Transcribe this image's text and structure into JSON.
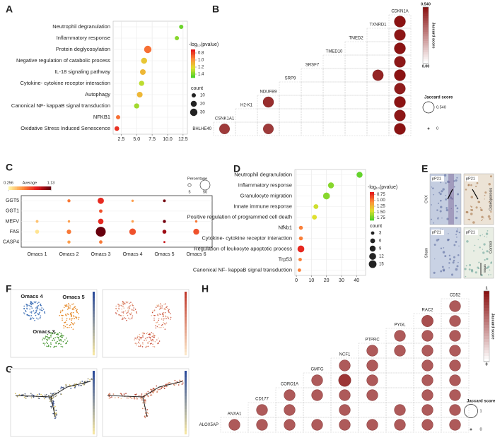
{
  "panel_labels": [
    "A",
    "B",
    "C",
    "D",
    "E",
    "F",
    "G",
    "H"
  ],
  "chart_data": [
    {
      "type": "dot",
      "categories": [
        "Neutrophil degranulation",
        "Inflammatory response",
        "Protein deglycosylation",
        "Negative regulation of catabolic process",
        "IL-18 signaling pathway",
        "Cytokine- cytokine receptor interaction",
        "Autophagy",
        "Canonical NF- kappaB signal transduction",
        "NFKB1",
        "Oxidative Stress Induced Senescence"
      ],
      "values": [
        12.2,
        11.5,
        6.8,
        6.2,
        6.0,
        5.8,
        5.5,
        5.0,
        2.0,
        1.8
      ],
      "sizes": [
        10,
        10,
        30,
        20,
        18,
        15,
        18,
        15,
        10,
        12
      ],
      "color_values": [
        1.45,
        1.4,
        0.9,
        1.15,
        1.1,
        1.3,
        1.1,
        1.35,
        0.9,
        0.75
      ],
      "xlim": [
        1.2,
        13.2
      ],
      "xticks": [
        2.5,
        {
          "value": 5,
          "label": "5.0"
        },
        7.5,
        {
          "value": 10,
          "label": "10.0"
        },
        12.5
      ],
      "grid": true,
      "colormap": [
        "#e31a1c",
        "#fd8d3c",
        "#dfe030",
        "#52d12b"
      ],
      "color_title": "-log₁₀(pvalue)",
      "colorlim": [
        0.7,
        1.5
      ],
      "color_ticks": [
        0.8,
        {
          "value": 1,
          "label": "1.0"
        },
        1.2,
        1.4
      ],
      "size_title": "count",
      "size_ticks": [
        10,
        20,
        30
      ]
    },
    {
      "type": "jaccard",
      "genes": [
        "BHLHE40",
        "CSNK1A1",
        "H2-K1",
        "NDUFB9",
        "SRP9",
        "SRSF7",
        "TMED10",
        "TMED2",
        "TXNRD1",
        "CDKN1A"
      ],
      "matrix": [
        [
          null,
          0.45,
          null,
          0.45,
          null,
          null,
          null,
          null,
          null,
          0.54
        ],
        [
          null,
          null,
          null,
          null,
          null,
          null,
          null,
          null,
          null,
          0.53
        ],
        [
          null,
          null,
          null,
          0.48,
          null,
          null,
          null,
          null,
          null,
          0.54
        ],
        [
          null,
          null,
          null,
          null,
          null,
          null,
          null,
          null,
          null,
          0.52
        ],
        [
          null,
          null,
          null,
          null,
          null,
          null,
          null,
          null,
          0.5,
          0.54
        ],
        [
          null,
          null,
          null,
          null,
          null,
          null,
          null,
          null,
          null,
          0.53
        ],
        [
          null,
          null,
          null,
          null,
          null,
          null,
          null,
          null,
          null,
          0.54
        ],
        [
          null,
          null,
          null,
          null,
          null,
          null,
          null,
          null,
          null,
          0.53
        ],
        [
          null,
          null,
          null,
          null,
          null,
          null,
          null,
          null,
          null,
          0.54
        ]
      ],
      "colormap": [
        "#ffffff",
        "#8b1313"
      ],
      "colorlim": [
        0,
        0.54
      ],
      "color_title": "Jaccard score",
      "color_ticks": [
        {
          "value": 0.54,
          "label": "0.540"
        },
        {
          "value": 0,
          "label": "0.00"
        }
      ],
      "size_title": "Jaccard score",
      "size_ticks": [
        {
          "value": 0.54,
          "label": "0.540"
        },
        {
          "value": 0,
          "label": "0"
        }
      ]
    },
    {
      "type": "bubble_grid",
      "genes": [
        "GGT5",
        "GGT1",
        "MEFV",
        "FAS",
        "CASP4"
      ],
      "categories": [
        "Omacs 1",
        "Omacs 2",
        "Omacs 3",
        "Omacs 4",
        "Omacs 5",
        "Omacs 6"
      ],
      "average": [
        [
          null,
          0.6,
          0.8,
          0.5,
          1.1,
          null
        ],
        [
          null,
          null,
          0.7,
          null,
          null,
          null
        ],
        [
          0.4,
          0.5,
          0.8,
          0.5,
          1.1,
          0.6
        ],
        [
          0.3,
          0.6,
          1.13,
          0.7,
          1.0,
          0.7
        ],
        [
          null,
          0.5,
          0.6,
          null,
          0.9,
          null
        ]
      ],
      "percentage": [
        [
          null,
          5,
          20,
          3,
          4,
          null
        ],
        [
          null,
          null,
          6,
          null,
          null,
          null
        ],
        [
          4,
          3,
          15,
          3,
          5,
          3
        ],
        [
          8,
          10,
          50,
          22,
          8,
          18
        ],
        [
          null,
          5,
          6,
          null,
          2,
          null
        ]
      ],
      "colormap": [
        "#fff3a0",
        "#fd8d3c",
        "#e31a1c",
        "#67000d"
      ],
      "color_title": "Average",
      "colorlim": [
        0.256,
        1.13
      ],
      "color_ticks": [
        0.256,
        1.13
      ],
      "size_title": "Percentage",
      "size_ticks": [
        5,
        50
      ]
    },
    {
      "type": "dot",
      "categories": [
        "Neutrophil degranulation",
        "Inflammatory response",
        "Granulocyte migration",
        "Innate immune response",
        "Positive regulation of programmed cell death",
        "Nfkb1",
        "Cytokine- cytokine receptor interaction",
        "Regulation of leukocyte apoptotic process",
        "Trp53",
        "Canonical NF- kappaB signal transduction"
      ],
      "values": [
        42,
        23,
        20,
        13,
        12,
        3,
        3,
        3,
        2.5,
        2
      ],
      "sizes": [
        9,
        9,
        12,
        6,
        6,
        4,
        4,
        12,
        3,
        3
      ],
      "color_values": [
        1.8,
        1.7,
        1.7,
        1.5,
        1.45,
        1.0,
        1.0,
        0.7,
        1.0,
        1.0
      ],
      "xlim": [
        -1,
        46
      ],
      "xticks": [
        0,
        10,
        20,
        30,
        40
      ],
      "grid": true,
      "colormap": [
        "#e31a1c",
        "#fd8d3c",
        "#dfe030",
        "#52d12b"
      ],
      "color_title": "-log₁₀(pvalue)",
      "colorlim": [
        0.65,
        1.85
      ],
      "color_ticks": [
        0.75,
        {
          "value": 1,
          "label": "1.00"
        },
        1.25,
        {
          "value": 1.5,
          "label": "1.50"
        },
        1.75
      ],
      "size_title": "count",
      "size_ticks": [
        3,
        6,
        9,
        12,
        15
      ]
    },
    {
      "type": "jaccard",
      "genes": [
        "ALOX5AP",
        "ANXA1",
        "CD177",
        "CORO1A",
        "GMFG",
        "NCF1",
        "PTPRC",
        "PYGL",
        "RAC2",
        "CD52"
      ],
      "matrix": [
        [
          null,
          0.7,
          0.7,
          0.7,
          0.7,
          0.7,
          0.7,
          0.7,
          0.7,
          0.7
        ],
        [
          null,
          null,
          0.7,
          0.7,
          null,
          0.7,
          null,
          0.7,
          0.7,
          0.7
        ],
        [
          null,
          null,
          null,
          0.7,
          0.7,
          0.7,
          0.7,
          null,
          0.7,
          0.7
        ],
        [
          null,
          null,
          null,
          null,
          0.7,
          0.85,
          0.7,
          null,
          0.7,
          0.7
        ],
        [
          null,
          null,
          null,
          null,
          null,
          0.7,
          0.7,
          null,
          0.7,
          0.7
        ],
        [
          null,
          null,
          null,
          null,
          null,
          null,
          0.7,
          0.7,
          0.7,
          0.7
        ],
        [
          null,
          null,
          null,
          null,
          null,
          null,
          null,
          0.7,
          0.7,
          0.7
        ],
        [
          null,
          null,
          null,
          null,
          null,
          null,
          null,
          null,
          0.75,
          0.7
        ],
        [
          null,
          null,
          null,
          null,
          null,
          null,
          null,
          null,
          null,
          0.7
        ]
      ],
      "colormap": [
        "#ffffff",
        "#8b1313"
      ],
      "colorlim": [
        0,
        1
      ],
      "color_title": "Jaccard score",
      "color_ticks": [
        1,
        0
      ],
      "size_title": "Jaccard score",
      "size_ticks": [
        1,
        0
      ]
    }
  ],
  "panel_e": {
    "stain": "pP21",
    "groups": [
      "OVX",
      "Sham"
    ],
    "conditions": [
      "Osteoporosis",
      "Control"
    ],
    "scale_bar": "50μm"
  },
  "panel_f": {
    "clusters": [
      {
        "name": "Omacs 4",
        "color": "#4a8c3a"
      },
      {
        "name": "Omacs 5",
        "color": "#e07b20"
      },
      {
        "name": "Omacs 3",
        "color": "#4a8c3a"
      }
    ]
  }
}
